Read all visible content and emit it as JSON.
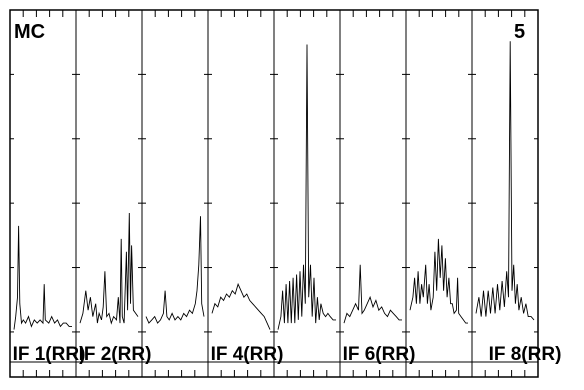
{
  "chart_data": {
    "type": "line",
    "corner_label": "MC",
    "corner_number": "5",
    "panels": [
      {
        "label": "IF 1(RR)",
        "points": [
          [
            0,
            0.1
          ],
          [
            0.03,
            0.14
          ],
          [
            0.06,
            0.2
          ],
          [
            0.08,
            0.42
          ],
          [
            0.1,
            0.18
          ],
          [
            0.13,
            0.12
          ],
          [
            0.16,
            0.13
          ],
          [
            0.2,
            0.12
          ],
          [
            0.25,
            0.14
          ],
          [
            0.3,
            0.11
          ],
          [
            0.35,
            0.13
          ],
          [
            0.4,
            0.12
          ],
          [
            0.45,
            0.13
          ],
          [
            0.5,
            0.12
          ],
          [
            0.52,
            0.24
          ],
          [
            0.54,
            0.13
          ],
          [
            0.6,
            0.12
          ],
          [
            0.65,
            0.14
          ],
          [
            0.7,
            0.12
          ],
          [
            0.75,
            0.13
          ],
          [
            0.8,
            0.11
          ],
          [
            0.85,
            0.12
          ],
          [
            0.9,
            0.12
          ],
          [
            0.95,
            0.11
          ],
          [
            1,
            0.11
          ]
        ]
      },
      {
        "label": "IF 2(RR)",
        "points": [
          [
            0,
            0.12
          ],
          [
            0.05,
            0.15
          ],
          [
            0.1,
            0.22
          ],
          [
            0.14,
            0.16
          ],
          [
            0.18,
            0.2
          ],
          [
            0.22,
            0.14
          ],
          [
            0.27,
            0.18
          ],
          [
            0.3,
            0.12
          ],
          [
            0.33,
            0.15
          ],
          [
            0.37,
            0.13
          ],
          [
            0.4,
            0.17
          ],
          [
            0.43,
            0.28
          ],
          [
            0.46,
            0.14
          ],
          [
            0.5,
            0.15
          ],
          [
            0.54,
            0.12
          ],
          [
            0.58,
            0.14
          ],
          [
            0.63,
            0.13
          ],
          [
            0.66,
            0.2
          ],
          [
            0.69,
            0.12
          ],
          [
            0.71,
            0.38
          ],
          [
            0.73,
            0.14
          ],
          [
            0.76,
            0.12
          ],
          [
            0.8,
            0.34
          ],
          [
            0.82,
            0.16
          ],
          [
            0.85,
            0.46
          ],
          [
            0.87,
            0.18
          ],
          [
            0.89,
            0.36
          ],
          [
            0.92,
            0.16
          ],
          [
            0.96,
            0.15
          ],
          [
            1,
            0.14
          ]
        ]
      },
      {
        "label": "",
        "points": [
          [
            0,
            0.14
          ],
          [
            0.05,
            0.12
          ],
          [
            0.1,
            0.13
          ],
          [
            0.15,
            0.14
          ],
          [
            0.2,
            0.12
          ],
          [
            0.25,
            0.13
          ],
          [
            0.3,
            0.15
          ],
          [
            0.33,
            0.22
          ],
          [
            0.36,
            0.14
          ],
          [
            0.4,
            0.13
          ],
          [
            0.45,
            0.15
          ],
          [
            0.5,
            0.13
          ],
          [
            0.55,
            0.14
          ],
          [
            0.6,
            0.13
          ],
          [
            0.65,
            0.15
          ],
          [
            0.7,
            0.14
          ],
          [
            0.75,
            0.16
          ],
          [
            0.8,
            0.15
          ],
          [
            0.85,
            0.18
          ],
          [
            0.88,
            0.22
          ],
          [
            0.91,
            0.3
          ],
          [
            0.94,
            0.45
          ],
          [
            0.96,
            0.18
          ],
          [
            1,
            0.14
          ]
        ]
      },
      {
        "label": "IF 4(RR)",
        "points": [
          [
            0,
            0.15
          ],
          [
            0.05,
            0.18
          ],
          [
            0.1,
            0.17
          ],
          [
            0.15,
            0.2
          ],
          [
            0.2,
            0.19
          ],
          [
            0.25,
            0.21
          ],
          [
            0.3,
            0.2
          ],
          [
            0.35,
            0.22
          ],
          [
            0.4,
            0.21
          ],
          [
            0.45,
            0.24
          ],
          [
            0.5,
            0.22
          ],
          [
            0.55,
            0.2
          ],
          [
            0.6,
            0.21
          ],
          [
            0.65,
            0.19
          ],
          [
            0.7,
            0.18
          ],
          [
            0.75,
            0.17
          ],
          [
            0.8,
            0.16
          ],
          [
            0.85,
            0.15
          ],
          [
            0.9,
            0.14
          ],
          [
            0.95,
            0.12
          ],
          [
            1,
            0.1
          ]
        ]
      },
      {
        "label": "",
        "points": [
          [
            0,
            0.1
          ],
          [
            0.05,
            0.14
          ],
          [
            0.08,
            0.22
          ],
          [
            0.11,
            0.12
          ],
          [
            0.14,
            0.24
          ],
          [
            0.17,
            0.12
          ],
          [
            0.2,
            0.25
          ],
          [
            0.23,
            0.12
          ],
          [
            0.26,
            0.26
          ],
          [
            0.29,
            0.12
          ],
          [
            0.32,
            0.27
          ],
          [
            0.35,
            0.13
          ],
          [
            0.38,
            0.28
          ],
          [
            0.41,
            0.14
          ],
          [
            0.44,
            0.3
          ],
          [
            0.47,
            0.18
          ],
          [
            0.5,
            0.98
          ],
          [
            0.53,
            0.2
          ],
          [
            0.56,
            0.3
          ],
          [
            0.59,
            0.14
          ],
          [
            0.62,
            0.26
          ],
          [
            0.65,
            0.12
          ],
          [
            0.68,
            0.2
          ],
          [
            0.71,
            0.13
          ],
          [
            0.74,
            0.18
          ],
          [
            0.78,
            0.15
          ],
          [
            0.82,
            0.14
          ],
          [
            0.86,
            0.15
          ],
          [
            0.9,
            0.14
          ],
          [
            0.95,
            0.13
          ],
          [
            1,
            0.13
          ]
        ]
      },
      {
        "label": "IF 6(RR)",
        "points": [
          [
            0,
            0.12
          ],
          [
            0.05,
            0.15
          ],
          [
            0.1,
            0.14
          ],
          [
            0.15,
            0.16
          ],
          [
            0.2,
            0.18
          ],
          [
            0.25,
            0.16
          ],
          [
            0.28,
            0.3
          ],
          [
            0.31,
            0.15
          ],
          [
            0.35,
            0.16
          ],
          [
            0.4,
            0.18
          ],
          [
            0.45,
            0.2
          ],
          [
            0.5,
            0.17
          ],
          [
            0.55,
            0.19
          ],
          [
            0.6,
            0.16
          ],
          [
            0.65,
            0.17
          ],
          [
            0.7,
            0.15
          ],
          [
            0.75,
            0.14
          ],
          [
            0.8,
            0.16
          ],
          [
            0.85,
            0.15
          ],
          [
            0.9,
            0.14
          ],
          [
            0.95,
            0.13
          ],
          [
            1,
            0.13
          ]
        ]
      },
      {
        "label": "",
        "points": [
          [
            0,
            0.16
          ],
          [
            0.05,
            0.2
          ],
          [
            0.08,
            0.26
          ],
          [
            0.11,
            0.18
          ],
          [
            0.14,
            0.28
          ],
          [
            0.17,
            0.18
          ],
          [
            0.2,
            0.24
          ],
          [
            0.23,
            0.2
          ],
          [
            0.27,
            0.3
          ],
          [
            0.3,
            0.18
          ],
          [
            0.33,
            0.24
          ],
          [
            0.36,
            0.16
          ],
          [
            0.4,
            0.2
          ],
          [
            0.43,
            0.34
          ],
          [
            0.46,
            0.22
          ],
          [
            0.49,
            0.38
          ],
          [
            0.52,
            0.26
          ],
          [
            0.55,
            0.36
          ],
          [
            0.58,
            0.22
          ],
          [
            0.61,
            0.32
          ],
          [
            0.64,
            0.2
          ],
          [
            0.67,
            0.26
          ],
          [
            0.7,
            0.18
          ],
          [
            0.73,
            0.18
          ],
          [
            0.76,
            0.15
          ],
          [
            0.8,
            0.16
          ],
          [
            0.82,
            0.26
          ],
          [
            0.84,
            0.15
          ],
          [
            0.88,
            0.14
          ],
          [
            0.92,
            0.13
          ],
          [
            0.96,
            0.12
          ],
          [
            1,
            0.12
          ]
        ]
      },
      {
        "label": "IF 8(RR)",
        "points": [
          [
            0,
            0.15
          ],
          [
            0.05,
            0.2
          ],
          [
            0.09,
            0.14
          ],
          [
            0.13,
            0.22
          ],
          [
            0.17,
            0.14
          ],
          [
            0.21,
            0.22
          ],
          [
            0.25,
            0.15
          ],
          [
            0.29,
            0.23
          ],
          [
            0.33,
            0.15
          ],
          [
            0.37,
            0.24
          ],
          [
            0.41,
            0.16
          ],
          [
            0.45,
            0.25
          ],
          [
            0.49,
            0.17
          ],
          [
            0.53,
            0.28
          ],
          [
            0.56,
            0.2
          ],
          [
            0.59,
            0.99
          ],
          [
            0.62,
            0.22
          ],
          [
            0.65,
            0.3
          ],
          [
            0.68,
            0.18
          ],
          [
            0.71,
            0.24
          ],
          [
            0.74,
            0.16
          ],
          [
            0.78,
            0.2
          ],
          [
            0.82,
            0.15
          ],
          [
            0.86,
            0.18
          ],
          [
            0.9,
            0.14
          ],
          [
            0.95,
            0.14
          ],
          [
            1,
            0.13
          ]
        ]
      }
    ],
    "x_ticks_per_panel": 5,
    "y_ticks": 5,
    "grid": false,
    "line_color": "#000000",
    "background": "#ffffff"
  }
}
